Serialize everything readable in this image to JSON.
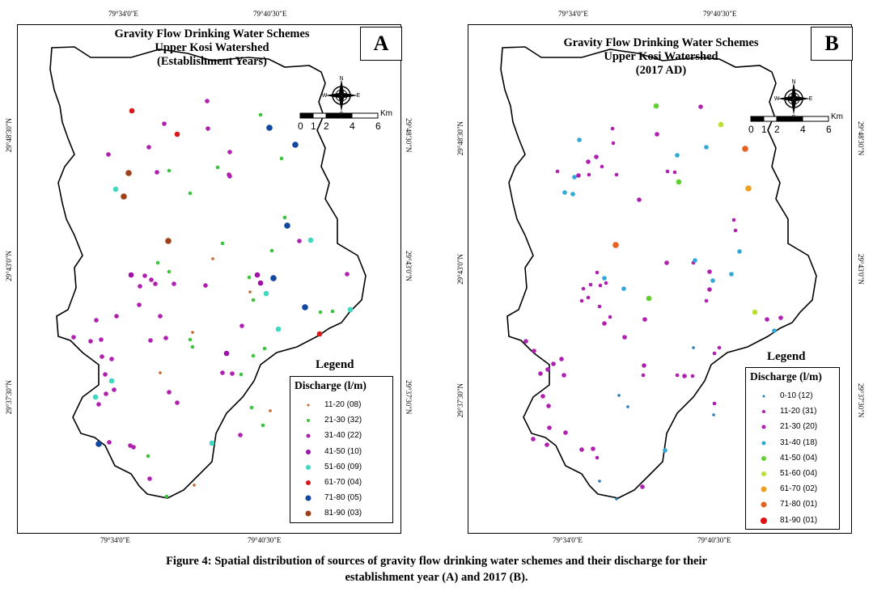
{
  "axes": {
    "x_ticks": [
      "79°34'0\"E",
      "79°40'30\"E"
    ],
    "y_ticks": [
      "29°48'30\"N",
      "29°43'0\"N",
      "29°37'30\"N"
    ]
  },
  "panel_a": {
    "title_line1": "Gravity Flow Drinking Water Schemes",
    "title_line2": "Upper Kosi Watershed",
    "title_line3": "(Establishment Years)",
    "letter": "A",
    "legend_title": "Legend",
    "legend_heading": "Discharge (l/m)",
    "legend": [
      {
        "label": "11-20 (08)",
        "color": "#c8642a",
        "size": 3
      },
      {
        "label": "21-30 (32)",
        "color": "#3cc43c",
        "size": 4
      },
      {
        "label": "31-40 (22)",
        "color": "#b01fb0",
        "size": 5
      },
      {
        "label": "41-50 (10)",
        "color": "#a010a8",
        "size": 6
      },
      {
        "label": "51-60 (09)",
        "color": "#40d8c0",
        "size": 6
      },
      {
        "label": "61-70 (04)",
        "color": "#d81818",
        "size": 6
      },
      {
        "label": "71-80 (05)",
        "color": "#1048a0",
        "size": 7
      },
      {
        "label": "81-90 (03)",
        "color": "#a0401a",
        "size": 7
      }
    ],
    "scale_unit": "Km",
    "scale_ticks": [
      "0",
      "1",
      "2",
      "4",
      "6"
    ]
  },
  "panel_b": {
    "title_line1": "Gravity Flow Drinking Water Schemes",
    "title_line2": "Upper Kosi Watershed",
    "title_line3": "(2017 AD)",
    "letter": "B",
    "legend_title": "Legend",
    "legend_heading": "Discharge (l/m)",
    "legend": [
      {
        "label": "0-10 (12)",
        "color": "#2a7ab8",
        "size": 3
      },
      {
        "label": "11-20 (31)",
        "color": "#b01fb0",
        "size": 4
      },
      {
        "label": "21-30 (20)",
        "color": "#b01fb0",
        "size": 5
      },
      {
        "label": "31-40 (18)",
        "color": "#30a8d8",
        "size": 5
      },
      {
        "label": "41-50 (04)",
        "color": "#60d030",
        "size": 6
      },
      {
        "label": "51-60 (04)",
        "color": "#b8e030",
        "size": 6
      },
      {
        "label": "61-70 (02)",
        "color": "#f0a020",
        "size": 7
      },
      {
        "label": "71-80 (01)",
        "color": "#e86020",
        "size": 7
      },
      {
        "label": "81-90 (01)",
        "color": "#e01010",
        "size": 8
      }
    ],
    "scale_unit": "Km",
    "scale_ticks": [
      "0",
      "1",
      "2",
      "4",
      "6"
    ]
  },
  "compass": {
    "n": "N",
    "s": "S",
    "e": "E",
    "w": "W"
  },
  "caption_line1": "Figure 4: Spatial distribution of sources of gravity flow drinking water schemes and their discharge for their",
  "caption_line2": "establishment year (A) and 2017 (B)."
}
